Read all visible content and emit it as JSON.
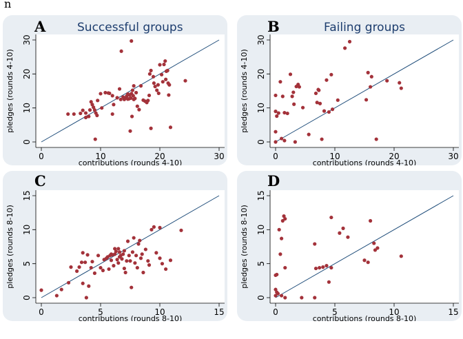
{
  "stray_glyph": "n",
  "colors": {
    "panel_bg": "#e9eef3",
    "plot_bg": "#ffffff",
    "marker": "#a3323a",
    "fit_line": "#1f4d7a",
    "axis_text": "#000000",
    "title_text": "#1d3d6e"
  },
  "chart_data": [
    {
      "type": "scatter",
      "letter": "A",
      "title": "Successful groups",
      "xlabel": "contributions (rounds 4-10)",
      "ylabel": "pledges (rounds 4-10)",
      "xlim": [
        0,
        30
      ],
      "ylim": [
        0,
        30
      ],
      "xticks": [
        0,
        10,
        20,
        30
      ],
      "yticks": [
        0,
        10,
        20,
        30
      ],
      "reference_line": [
        [
          0,
          0
        ],
        [
          30,
          30
        ]
      ],
      "points": [
        [
          4.5,
          8.2
        ],
        [
          5.5,
          8.2
        ],
        [
          6.6,
          8.4
        ],
        [
          7,
          9.3
        ],
        [
          7.5,
          8.5
        ],
        [
          7.5,
          7.2
        ],
        [
          8,
          7.5
        ],
        [
          8.2,
          9.4
        ],
        [
          8.4,
          11.8
        ],
        [
          8.6,
          11
        ],
        [
          8.8,
          10.2
        ],
        [
          9,
          9.4
        ],
        [
          9.2,
          8.5
        ],
        [
          9.1,
          0.8
        ],
        [
          9.4,
          7.8
        ],
        [
          9.5,
          12.2
        ],
        [
          10,
          14.2
        ],
        [
          10.2,
          10
        ],
        [
          10.8,
          14.5
        ],
        [
          11.3,
          14.4
        ],
        [
          11.5,
          14.3
        ],
        [
          12,
          8.2
        ],
        [
          12.2,
          11
        ],
        [
          12.8,
          13
        ],
        [
          13.2,
          15.6
        ],
        [
          13.4,
          12.5
        ],
        [
          13.5,
          26.7
        ],
        [
          13.8,
          13.2
        ],
        [
          14,
          12.5
        ],
        [
          14.2,
          12.9
        ],
        [
          14.4,
          13.5
        ],
        [
          14.6,
          12.6
        ],
        [
          14.6,
          14.1
        ],
        [
          14.8,
          12.7
        ],
        [
          14.9,
          13.8
        ],
        [
          15,
          3.2
        ],
        [
          15.1,
          12.9
        ],
        [
          15.2,
          14.2
        ],
        [
          15.3,
          7.5
        ],
        [
          15.4,
          15.2
        ],
        [
          15.5,
          13.6
        ],
        [
          15.6,
          12.5
        ],
        [
          15.6,
          16.5
        ],
        [
          15.8,
          12.8
        ],
        [
          16,
          14.5
        ],
        [
          16.2,
          10.5
        ],
        [
          16.5,
          9.5
        ],
        [
          16.8,
          16.5
        ],
        [
          17.2,
          12.3
        ],
        [
          17.5,
          12
        ],
        [
          17.8,
          11.6
        ],
        [
          18,
          12.2
        ],
        [
          18.2,
          13.7
        ],
        [
          18.3,
          20
        ],
        [
          18.5,
          21
        ],
        [
          18.9,
          19.2
        ],
        [
          19,
          17.3
        ],
        [
          19.2,
          16.3
        ],
        [
          19.5,
          15.2
        ],
        [
          19.7,
          16.8
        ],
        [
          19.8,
          14.3
        ],
        [
          20,
          22.7
        ],
        [
          20.3,
          19.8
        ],
        [
          20.5,
          17.7
        ],
        [
          20.7,
          22.8
        ],
        [
          20.9,
          23.8
        ],
        [
          21,
          18.4
        ],
        [
          21.1,
          20.8
        ],
        [
          21.3,
          21
        ],
        [
          21.4,
          17.3
        ],
        [
          21.5,
          13.8
        ],
        [
          21.6,
          16.8
        ],
        [
          21.8,
          4.3
        ],
        [
          24.3,
          18
        ],
        [
          18.5,
          4
        ],
        [
          15.2,
          29.7
        ],
        [
          12,
          13.6
        ]
      ]
    },
    {
      "type": "scatter",
      "letter": "B",
      "title": "Failing groups",
      "xlabel": "contributions (rounds 4-10)",
      "ylabel": "pledges (rounds 4-10)",
      "xlim": [
        0,
        30
      ],
      "ylim": [
        0,
        30
      ],
      "xticks": [
        0,
        10,
        20,
        30
      ],
      "yticks": [
        0,
        10,
        20,
        30
      ],
      "reference_line": [
        [
          0,
          0
        ],
        [
          30,
          30
        ]
      ],
      "points": [
        [
          0,
          13.7
        ],
        [
          0,
          9
        ],
        [
          0,
          3
        ],
        [
          0,
          0
        ],
        [
          0.2,
          7.6
        ],
        [
          0.5,
          8.5
        ],
        [
          0.8,
          17.7
        ],
        [
          1,
          1
        ],
        [
          1.2,
          13.4
        ],
        [
          1.5,
          8.6
        ],
        [
          2,
          8.4
        ],
        [
          2.5,
          19.9
        ],
        [
          2.8,
          13.4
        ],
        [
          3,
          14.6
        ],
        [
          3.1,
          11.1
        ],
        [
          3.3,
          0
        ],
        [
          3.5,
          16.3
        ],
        [
          3.8,
          16.9
        ],
        [
          4,
          16.2
        ],
        [
          4.6,
          10.1
        ],
        [
          5.6,
          2.2
        ],
        [
          6.8,
          14.3
        ],
        [
          7,
          11.6
        ],
        [
          7.2,
          15.4
        ],
        [
          7.3,
          15.2
        ],
        [
          7.5,
          11.3
        ],
        [
          8.2,
          9.1
        ],
        [
          8.6,
          18.2
        ],
        [
          9,
          8.8
        ],
        [
          9.4,
          19.8
        ],
        [
          9.6,
          9.6
        ],
        [
          10.5,
          12.3
        ],
        [
          11.7,
          27.6
        ],
        [
          12.5,
          29.5
        ],
        [
          16,
          16.2
        ],
        [
          17,
          0.8
        ],
        [
          18.8,
          18
        ],
        [
          20.9,
          17.4
        ],
        [
          21.2,
          15.8
        ],
        [
          15.3,
          12.4
        ],
        [
          15.6,
          20.4
        ],
        [
          16.2,
          19.2
        ],
        [
          7.8,
          0.8
        ],
        [
          1.5,
          0.4
        ]
      ]
    },
    {
      "type": "scatter",
      "letter": "C",
      "title": "",
      "xlabel": "contributions (rounds 8-10)",
      "ylabel": "pledges (rounds 8-10)",
      "xlim": [
        0,
        15
      ],
      "ylim": [
        0,
        15
      ],
      "xticks": [
        0,
        5,
        10,
        15
      ],
      "yticks": [
        0,
        5,
        10,
        15
      ],
      "reference_line": [
        [
          0,
          0
        ],
        [
          15,
          15
        ]
      ],
      "points": [
        [
          0,
          1.1
        ],
        [
          1.3,
          0.3
        ],
        [
          1.7,
          1.2
        ],
        [
          2.3,
          2.2
        ],
        [
          2.5,
          4.5
        ],
        [
          3,
          3.9
        ],
        [
          3.2,
          4.5
        ],
        [
          3.4,
          5.2
        ],
        [
          3.5,
          6.6
        ],
        [
          3.5,
          2.1
        ],
        [
          3.7,
          5.2
        ],
        [
          3.8,
          0
        ],
        [
          3.9,
          6.3
        ],
        [
          4,
          1.7
        ],
        [
          4.2,
          4.4
        ],
        [
          4.3,
          5.3
        ],
        [
          4.5,
          3.6
        ],
        [
          4.8,
          6.2
        ],
        [
          5,
          4.4
        ],
        [
          5.2,
          4
        ],
        [
          5.3,
          5.6
        ],
        [
          5.5,
          5.8
        ],
        [
          5.6,
          6
        ],
        [
          5.7,
          4.2
        ],
        [
          5.8,
          6.2
        ],
        [
          5.9,
          5.5
        ],
        [
          6,
          6.3
        ],
        [
          6.1,
          4.7
        ],
        [
          6.2,
          6.4
        ],
        [
          6.3,
          6.8
        ],
        [
          6.4,
          5.6
        ],
        [
          6.5,
          7.2
        ],
        [
          6.5,
          5.1
        ],
        [
          6.6,
          6.7
        ],
        [
          6.7,
          6.2
        ],
        [
          6.8,
          5.7
        ],
        [
          6.9,
          6.4
        ],
        [
          7,
          4.3
        ],
        [
          7,
          6.9
        ],
        [
          7.1,
          3.7
        ],
        [
          7.2,
          5.4
        ],
        [
          7.3,
          8.3
        ],
        [
          7.4,
          6.2
        ],
        [
          7.5,
          5.4
        ],
        [
          7.6,
          1.5
        ],
        [
          7.7,
          6.7
        ],
        [
          7.8,
          8.8
        ],
        [
          7.9,
          5.1
        ],
        [
          8,
          6.2
        ],
        [
          8.1,
          4.4
        ],
        [
          8.2,
          7.9
        ],
        [
          8.3,
          8.4
        ],
        [
          8.4,
          5.8
        ],
        [
          8.5,
          6.4
        ],
        [
          8.6,
          3.7
        ],
        [
          8.8,
          7.1
        ],
        [
          9,
          5.4
        ],
        [
          9.1,
          4.8
        ],
        [
          9.3,
          10
        ],
        [
          9.5,
          10.4
        ],
        [
          9.7,
          6.6
        ],
        [
          10,
          10.3
        ],
        [
          10,
          5.8
        ],
        [
          10.2,
          5
        ],
        [
          10.5,
          4.2
        ],
        [
          10.9,
          5.5
        ],
        [
          11.8,
          9.9
        ],
        [
          6.2,
          7.2
        ],
        [
          6.6,
          6
        ],
        [
          5.9,
          6.4
        ]
      ]
    },
    {
      "type": "scatter",
      "letter": "D",
      "title": "",
      "xlabel": "contributions (rounds 8-10)",
      "ylabel": "pledges (rounds 8-10)",
      "xlim": [
        0,
        15
      ],
      "ylim": [
        0,
        15
      ],
      "xticks": [
        0,
        5,
        10,
        15
      ],
      "yticks": [
        0,
        5,
        10,
        15
      ],
      "reference_line": [
        [
          0,
          0
        ],
        [
          15,
          15
        ]
      ],
      "points": [
        [
          0,
          3.3
        ],
        [
          0,
          1.2
        ],
        [
          0,
          0.3
        ],
        [
          0.1,
          0.8
        ],
        [
          0.1,
          3.4
        ],
        [
          0.2,
          0.6
        ],
        [
          0.3,
          10
        ],
        [
          0.4,
          6.4
        ],
        [
          0.5,
          8.7
        ],
        [
          0.5,
          0.3
        ],
        [
          0.6,
          11.3
        ],
        [
          0.7,
          12
        ],
        [
          0.8,
          11.6
        ],
        [
          0.8,
          4.4
        ],
        [
          0.8,
          0
        ],
        [
          2.2,
          0
        ],
        [
          3.3,
          0
        ],
        [
          3.4,
          4.3
        ],
        [
          3.3,
          7.9
        ],
        [
          3.7,
          4.4
        ],
        [
          4,
          4.5
        ],
        [
          4.3,
          4.7
        ],
        [
          4.5,
          2.3
        ],
        [
          4.7,
          4.4
        ],
        [
          4.7,
          11.8
        ],
        [
          5.4,
          9.5
        ],
        [
          5.7,
          10.2
        ],
        [
          6.1,
          8.9
        ],
        [
          7.5,
          5.5
        ],
        [
          7.8,
          5.2
        ],
        [
          8,
          11.3
        ],
        [
          8.3,
          8
        ],
        [
          8.4,
          7
        ],
        [
          8.6,
          7.3
        ],
        [
          10.6,
          6.1
        ]
      ]
    }
  ]
}
